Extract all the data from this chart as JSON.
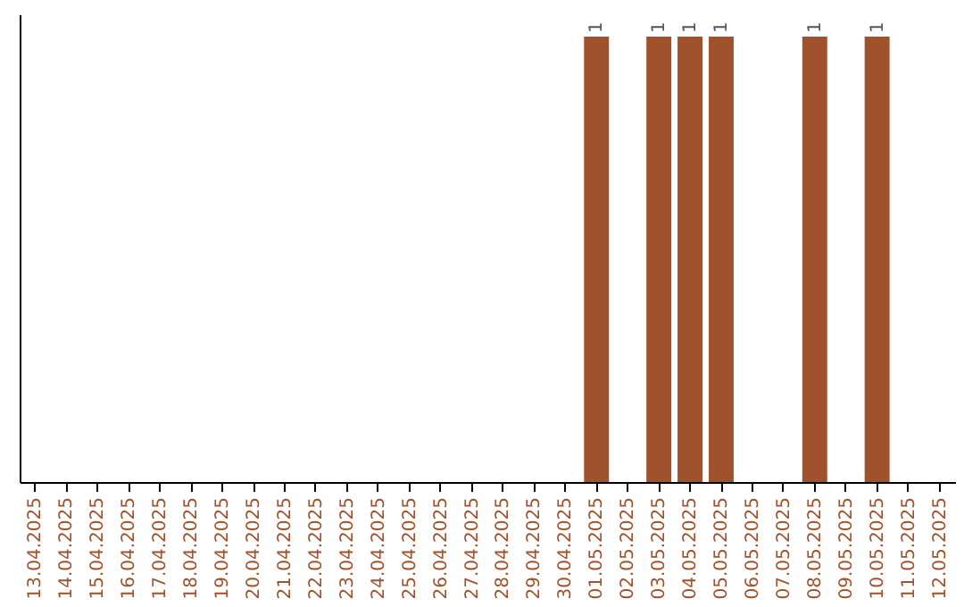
{
  "chart_data": {
    "type": "bar",
    "categories": [
      "13.04.2025",
      "14.04.2025",
      "15.04.2025",
      "16.04.2025",
      "17.04.2025",
      "18.04.2025",
      "19.04.2025",
      "20.04.2025",
      "21.04.2025",
      "22.04.2025",
      "23.04.2025",
      "24.04.2025",
      "25.04.2025",
      "26.04.2025",
      "27.04.2025",
      "28.04.2025",
      "29.04.2025",
      "30.04.2025",
      "01.05.2025",
      "02.05.2025",
      "03.05.2025",
      "04.05.2025",
      "05.05.2025",
      "06.05.2025",
      "07.05.2025",
      "08.05.2025",
      "09.05.2025",
      "10.05.2025",
      "11.05.2025",
      "12.05.2025"
    ],
    "values": [
      null,
      null,
      null,
      null,
      null,
      null,
      null,
      null,
      null,
      null,
      null,
      null,
      null,
      null,
      null,
      null,
      null,
      null,
      1,
      null,
      1,
      1,
      1,
      null,
      null,
      1,
      null,
      1,
      null,
      null
    ],
    "data_labels": true,
    "color": "#a0522d",
    "ylim": [
      0,
      1.05
    ],
    "tick_labels": "x",
    "grid": false
  }
}
